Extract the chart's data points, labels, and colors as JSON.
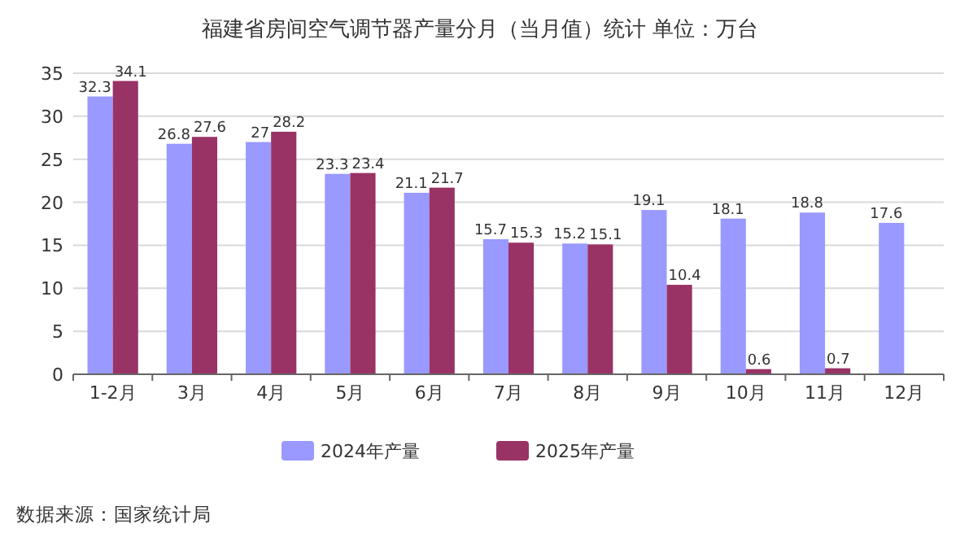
{
  "chart_data": {
    "type": "bar",
    "title": "福建省房间空气调节器产量分月（当月值）统计  单位：万台",
    "categories": [
      "1-2月",
      "3月",
      "4月",
      "5月",
      "6月",
      "7月",
      "8月",
      "9月",
      "10月",
      "11月",
      "12月"
    ],
    "series": [
      {
        "name": "2024年产量",
        "color": "#9999ff",
        "values": [
          32.3,
          26.8,
          27,
          23.3,
          21.1,
          15.7,
          15.2,
          19.1,
          18.1,
          18.8,
          17.6
        ]
      },
      {
        "name": "2025年产量",
        "color": "#993366",
        "values": [
          34.1,
          27.6,
          28.2,
          23.4,
          21.7,
          15.3,
          15.1,
          10.4,
          0.6,
          0.7,
          null
        ]
      }
    ],
    "ylim": [
      0,
      35
    ],
    "yticks": [
      0,
      5,
      10,
      15,
      20,
      25,
      30,
      35
    ],
    "grid": "y",
    "legend": "bottom",
    "data_labels": true,
    "annotations": [
      "数据来源：国家统计局"
    ]
  }
}
